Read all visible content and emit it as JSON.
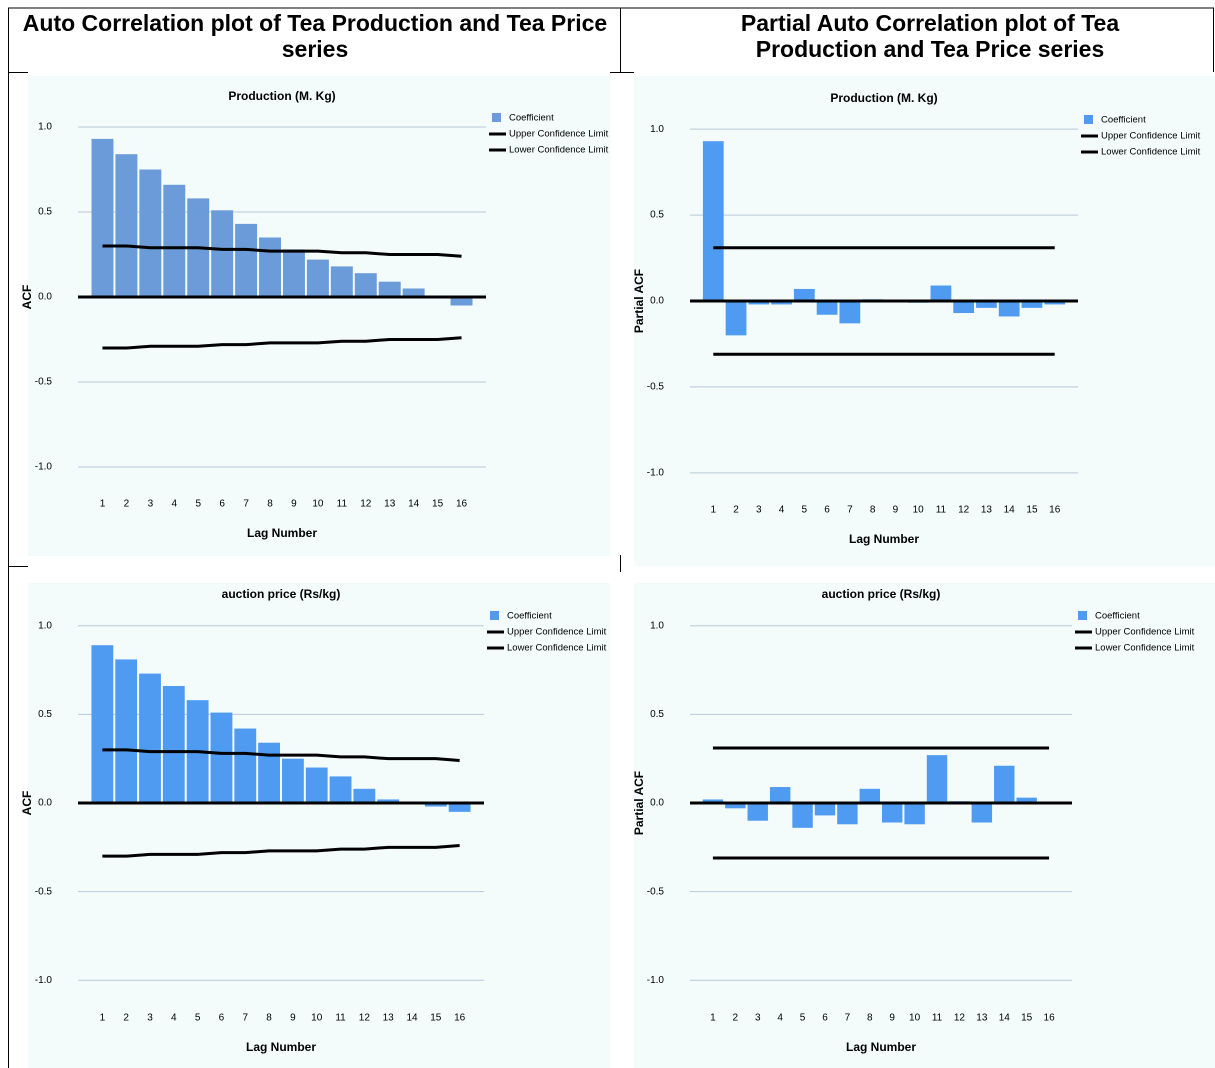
{
  "table": {
    "headers": [
      "Auto Correlation plot of Tea Production and Tea Price series",
      "Partial Auto Correlation plot of Tea Production and Tea Price series"
    ]
  },
  "chart_data": [
    {
      "type": "bar",
      "title": "Production (M. Kg)",
      "x_label": "Lag Number",
      "y_label": "ACF",
      "categories": [
        1,
        2,
        3,
        4,
        5,
        6,
        7,
        8,
        9,
        10,
        11,
        12,
        13,
        14,
        15,
        16
      ],
      "ylim": [
        -1.1,
        1.1
      ],
      "yticks": [
        {
          "value": -1,
          "label": "-1.0"
        },
        -0.5,
        {
          "value": 0,
          "label": "0.0"
        },
        0.5,
        {
          "value": 1,
          "label": "1.0"
        }
      ],
      "grid": true,
      "series": [
        {
          "name": "Coefficient",
          "type": "bar",
          "color": "#6b9bd8",
          "values": [
            0.93,
            0.84,
            0.75,
            0.66,
            0.58,
            0.51,
            0.43,
            0.35,
            0.28,
            0.22,
            0.18,
            0.14,
            0.09,
            0.05,
            0.0,
            -0.05
          ]
        },
        {
          "name": "Upper Confidence Limit",
          "type": "line",
          "color": "#000000",
          "values": [
            0.3,
            0.3,
            0.29,
            0.29,
            0.29,
            0.28,
            0.28,
            0.27,
            0.27,
            0.27,
            0.26,
            0.26,
            0.25,
            0.25,
            0.25,
            0.24
          ]
        },
        {
          "name": "Lower Confidence Limit",
          "type": "line",
          "color": "#000000",
          "values": [
            -0.3,
            -0.3,
            -0.29,
            -0.29,
            -0.29,
            -0.28,
            -0.28,
            -0.27,
            -0.27,
            -0.27,
            -0.26,
            -0.26,
            -0.25,
            -0.25,
            -0.25,
            -0.24
          ]
        }
      ]
    },
    {
      "type": "bar",
      "title": "Production (M. Kg)",
      "x_label": "Lag Number",
      "y_label": "Partial ACF",
      "categories": [
        1,
        2,
        3,
        4,
        5,
        6,
        7,
        8,
        9,
        10,
        11,
        12,
        13,
        14,
        15,
        16
      ],
      "ylim": [
        -1.1,
        1.1
      ],
      "yticks": [
        {
          "value": -1,
          "label": "-1.0"
        },
        -0.5,
        {
          "value": 0,
          "label": "0.0"
        },
        0.5,
        {
          "value": 1,
          "label": "1.0"
        }
      ],
      "grid": true,
      "series": [
        {
          "name": "Coefficient",
          "type": "bar",
          "color": "#4f9bf2",
          "values": [
            0.93,
            -0.2,
            -0.02,
            -0.02,
            0.07,
            -0.08,
            -0.13,
            0.01,
            0.0,
            -0.01,
            0.09,
            -0.07,
            -0.04,
            -0.09,
            -0.04,
            -0.02
          ]
        },
        {
          "name": "Upper Confidence Limit",
          "type": "line",
          "color": "#000000",
          "values": [
            0.31,
            0.31,
            0.31,
            0.31,
            0.31,
            0.31,
            0.31,
            0.31,
            0.31,
            0.31,
            0.31,
            0.31,
            0.31,
            0.31,
            0.31,
            0.31
          ]
        },
        {
          "name": "Lower Confidence Limit",
          "type": "line",
          "color": "#000000",
          "values": [
            -0.31,
            -0.31,
            -0.31,
            -0.31,
            -0.31,
            -0.31,
            -0.31,
            -0.31,
            -0.31,
            -0.31,
            -0.31,
            -0.31,
            -0.31,
            -0.31,
            -0.31,
            -0.31
          ]
        }
      ]
    },
    {
      "type": "bar",
      "title": "auction price (Rs/kg)",
      "x_label": "Lag Number",
      "y_label": "ACF",
      "categories": [
        1,
        2,
        3,
        4,
        5,
        6,
        7,
        8,
        9,
        10,
        11,
        12,
        13,
        14,
        15,
        16
      ],
      "ylim": [
        -1.1,
        1.1
      ],
      "yticks": [
        {
          "value": -1,
          "label": "-1.0"
        },
        -0.5,
        {
          "value": 0,
          "label": "0.0"
        },
        0.5,
        {
          "value": 1,
          "label": "1.0"
        }
      ],
      "grid": true,
      "series": [
        {
          "name": "Coefficient",
          "type": "bar",
          "color": "#4f9bf2",
          "values": [
            0.89,
            0.81,
            0.73,
            0.66,
            0.58,
            0.51,
            0.42,
            0.34,
            0.25,
            0.2,
            0.15,
            0.08,
            0.02,
            0.0,
            -0.02,
            -0.05
          ]
        },
        {
          "name": "Upper Confidence Limit",
          "type": "line",
          "color": "#000000",
          "values": [
            0.3,
            0.3,
            0.29,
            0.29,
            0.29,
            0.28,
            0.28,
            0.27,
            0.27,
            0.27,
            0.26,
            0.26,
            0.25,
            0.25,
            0.25,
            0.24
          ]
        },
        {
          "name": "Lower Confidence Limit",
          "type": "line",
          "color": "#000000",
          "values": [
            -0.3,
            -0.3,
            -0.29,
            -0.29,
            -0.29,
            -0.28,
            -0.28,
            -0.27,
            -0.27,
            -0.27,
            -0.26,
            -0.26,
            -0.25,
            -0.25,
            -0.25,
            -0.24
          ]
        }
      ]
    },
    {
      "type": "bar",
      "title": "auction price (Rs/kg)",
      "x_label": "Lag Number",
      "y_label": "Partial ACF",
      "categories": [
        1,
        2,
        3,
        4,
        5,
        6,
        7,
        8,
        9,
        10,
        11,
        12,
        13,
        14,
        15,
        16
      ],
      "ylim": [
        -1.1,
        1.1
      ],
      "yticks": [
        {
          "value": -1,
          "label": "-1.0"
        },
        -0.5,
        {
          "value": 0,
          "label": "0.0"
        },
        0.5,
        {
          "value": 1,
          "label": "1.0"
        }
      ],
      "grid": true,
      "series": [
        {
          "name": "Coefficient",
          "type": "bar",
          "color": "#4f9bf2",
          "values": [
            0.02,
            -0.03,
            -0.1,
            0.09,
            -0.14,
            -0.07,
            -0.12,
            0.08,
            -0.11,
            -0.12,
            0.27,
            0.01,
            -0.11,
            0.21,
            0.03,
            0.0
          ]
        },
        {
          "name": "Upper Confidence Limit",
          "type": "line",
          "color": "#000000",
          "values": [
            0.31,
            0.31,
            0.31,
            0.31,
            0.31,
            0.31,
            0.31,
            0.31,
            0.31,
            0.31,
            0.31,
            0.31,
            0.31,
            0.31,
            0.31,
            0.31
          ]
        },
        {
          "name": "Lower Confidence Limit",
          "type": "line",
          "color": "#000000",
          "values": [
            -0.31,
            -0.31,
            -0.31,
            -0.31,
            -0.31,
            -0.31,
            -0.31,
            -0.31,
            -0.31,
            -0.31,
            -0.31,
            -0.31,
            -0.31,
            -0.31,
            -0.31,
            -0.31
          ]
        }
      ]
    }
  ]
}
